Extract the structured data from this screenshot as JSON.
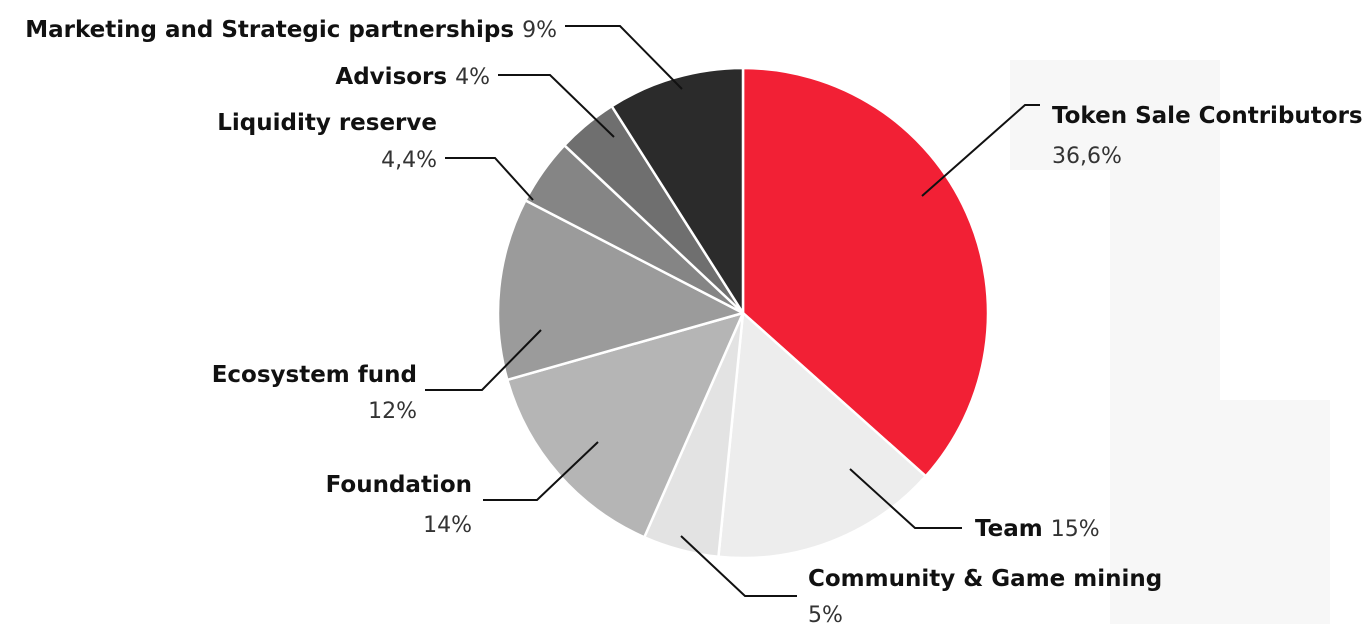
{
  "chart_data": {
    "type": "pie",
    "title": "",
    "slices": [
      {
        "label": "Token Sale Contributors",
        "value": 36.6,
        "value_label": "36,6%",
        "color": "#F22035"
      },
      {
        "label": "Team",
        "value": 15,
        "value_label": "15%",
        "color": "#EDEDED"
      },
      {
        "label": "Community & Game mining",
        "value": 5,
        "value_label": "5%",
        "color": "#E3E3E3"
      },
      {
        "label": "Foundation",
        "value": 14,
        "value_label": "14%",
        "color": "#B5B5B5"
      },
      {
        "label": "Ecosystem fund",
        "value": 12,
        "value_label": "12%",
        "color": "#9B9B9B"
      },
      {
        "label": "Liquidity reserve",
        "value": 4.4,
        "value_label": "4,4%",
        "color": "#858585"
      },
      {
        "label": "Advisors",
        "value": 4,
        "value_label": "4%",
        "color": "#6F6F6F"
      },
      {
        "label": "Marketing and Strategic partnerships",
        "value": 9,
        "value_label": "9%",
        "color": "#2B2B2B"
      }
    ],
    "start": "12 o'clock",
    "direction": "clockwise",
    "background_mark_color": "#F7F7F7"
  }
}
